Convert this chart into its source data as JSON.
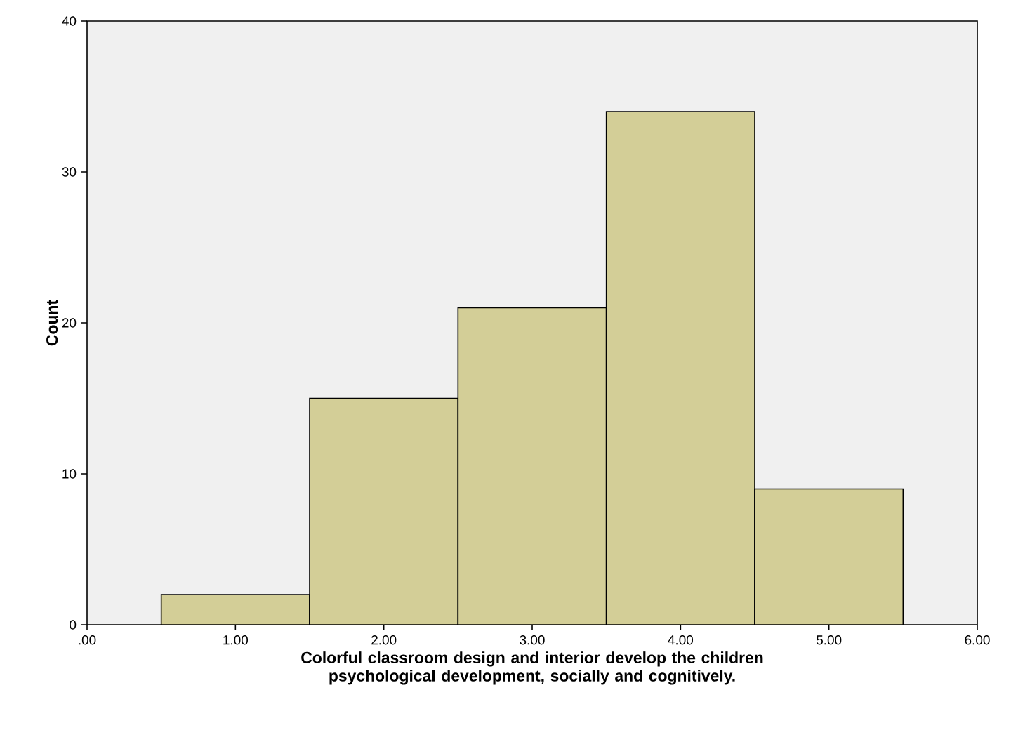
{
  "chart_data": {
    "type": "histogram",
    "xlabel": "Colorful classroom design and interior develop the children psychological development, socially and cognitively.",
    "ylabel": "Count",
    "bins": [
      0.5,
      1.5,
      2.5,
      3.5,
      4.5,
      5.5
    ],
    "values": [
      2,
      15,
      21,
      34,
      9
    ],
    "color": "#d3ce97",
    "xlim": [
      0,
      6
    ],
    "xticks": [
      {
        "value": 0,
        "label": ".00"
      },
      {
        "value": 1,
        "label": "1.00"
      },
      {
        "value": 2,
        "label": "2.00"
      },
      {
        "value": 3,
        "label": "3.00"
      },
      {
        "value": 4,
        "label": "4.00"
      },
      {
        "value": 5,
        "label": "5.00"
      },
      {
        "value": 6,
        "label": "6.00"
      }
    ],
    "ylim": [
      0,
      40
    ],
    "yticks": [
      0,
      10,
      20,
      30,
      40
    ],
    "grid": false
  }
}
